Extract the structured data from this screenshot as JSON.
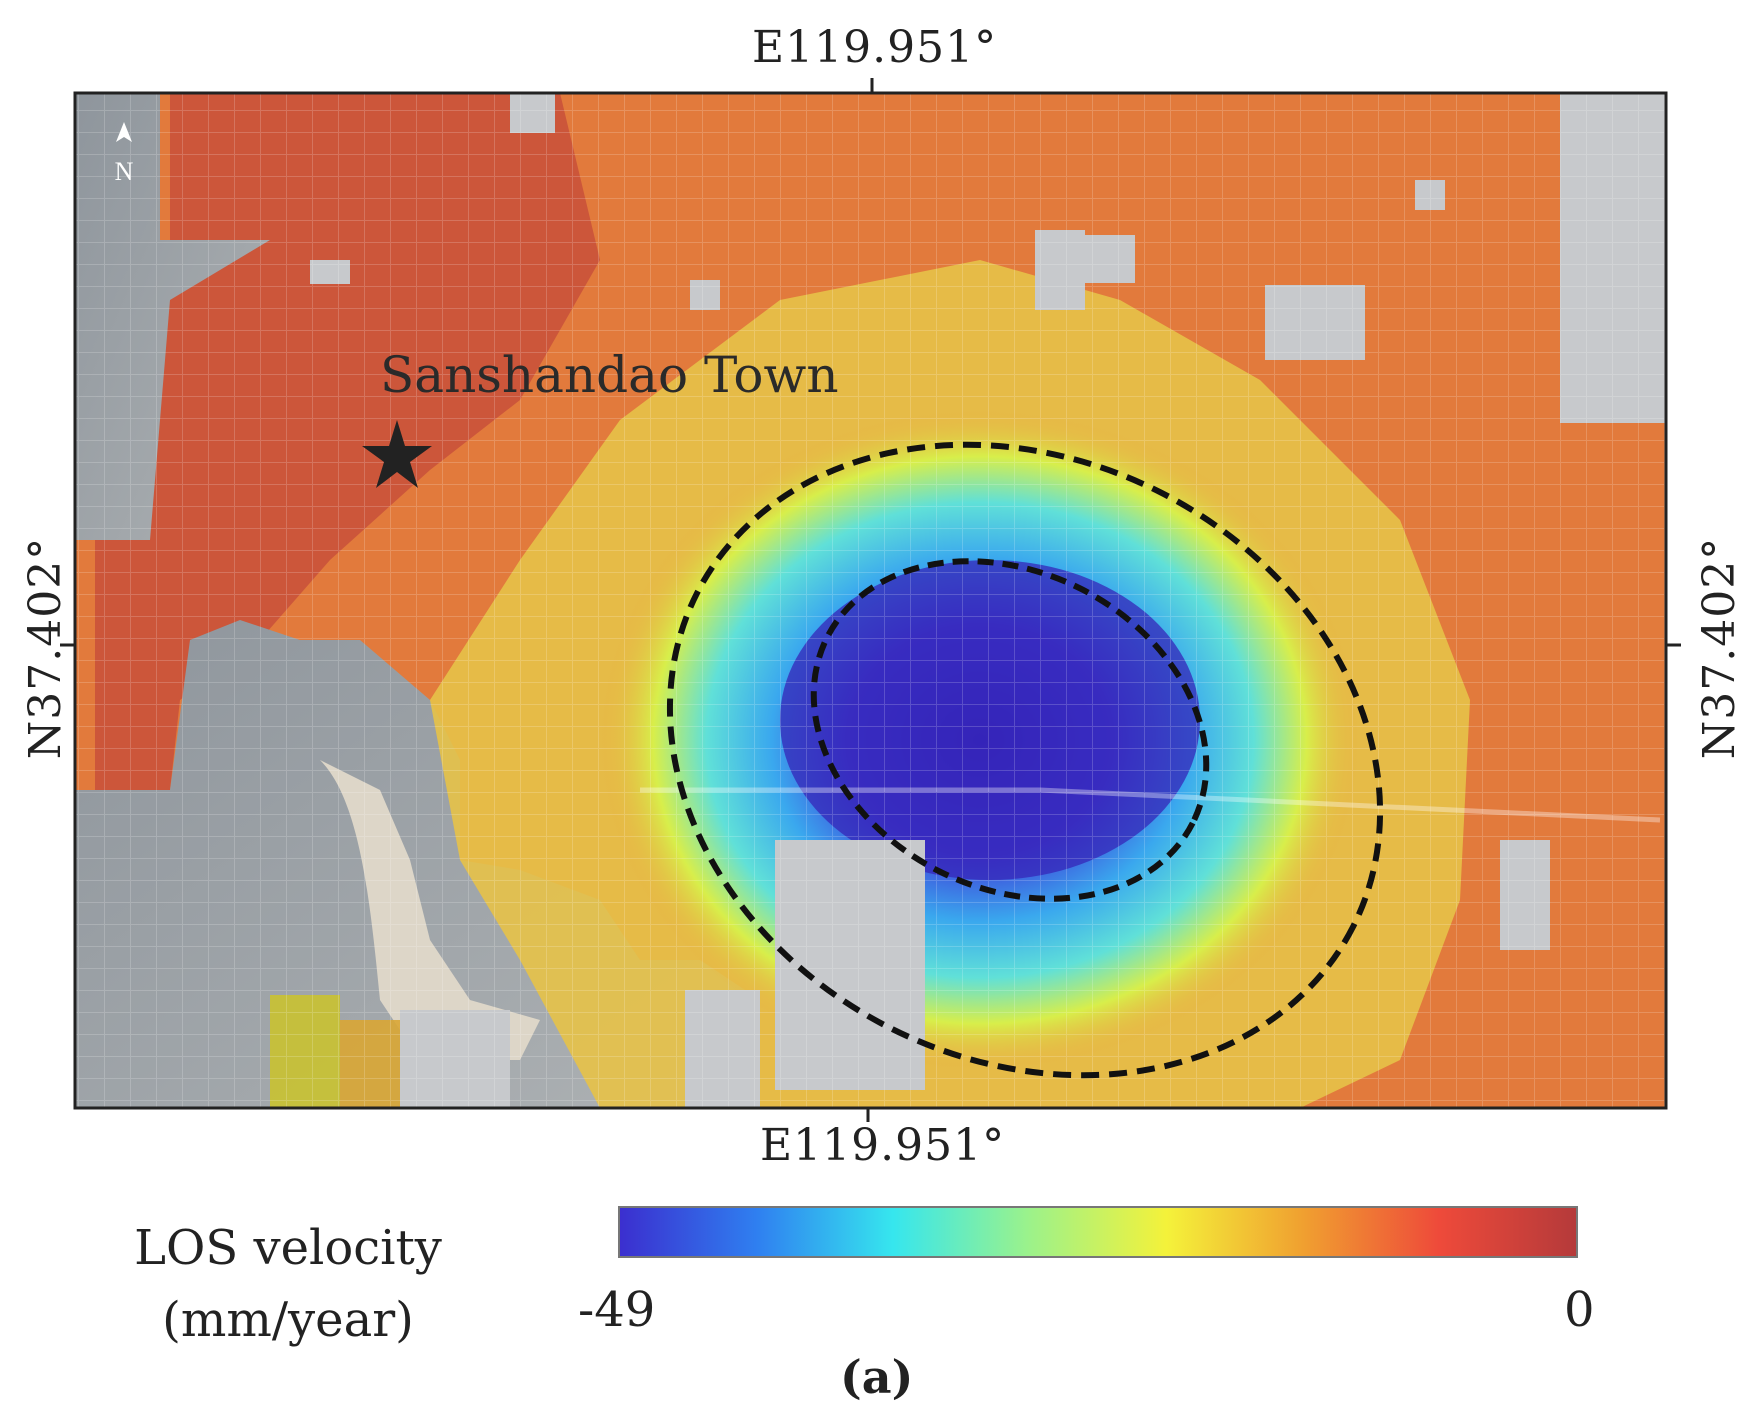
{
  "map": {
    "coord_top": "E119.951°",
    "coord_bottom": "E119.951°",
    "coord_left": "N37.402°",
    "coord_right": "N37.402°",
    "north_label": "N",
    "place_label": "Sanshandao Town"
  },
  "legend": {
    "title_line1": "LOS velocity",
    "title_line2": "(mm/year)",
    "min_label": "-49",
    "max_label": "0",
    "colors": [
      "#3b2fcf",
      "#2f7ff0",
      "#36e6ee",
      "#9cf28a",
      "#f4f23a",
      "#f0a030",
      "#ee4a3a",
      "#b53a3a"
    ]
  },
  "panel_label": "(a)",
  "colors": {
    "water": "#9aa0a6",
    "sand": "#d8d2c4",
    "urban": "#d96a3a",
    "ellipse": "#111111",
    "frame": "#222222"
  }
}
